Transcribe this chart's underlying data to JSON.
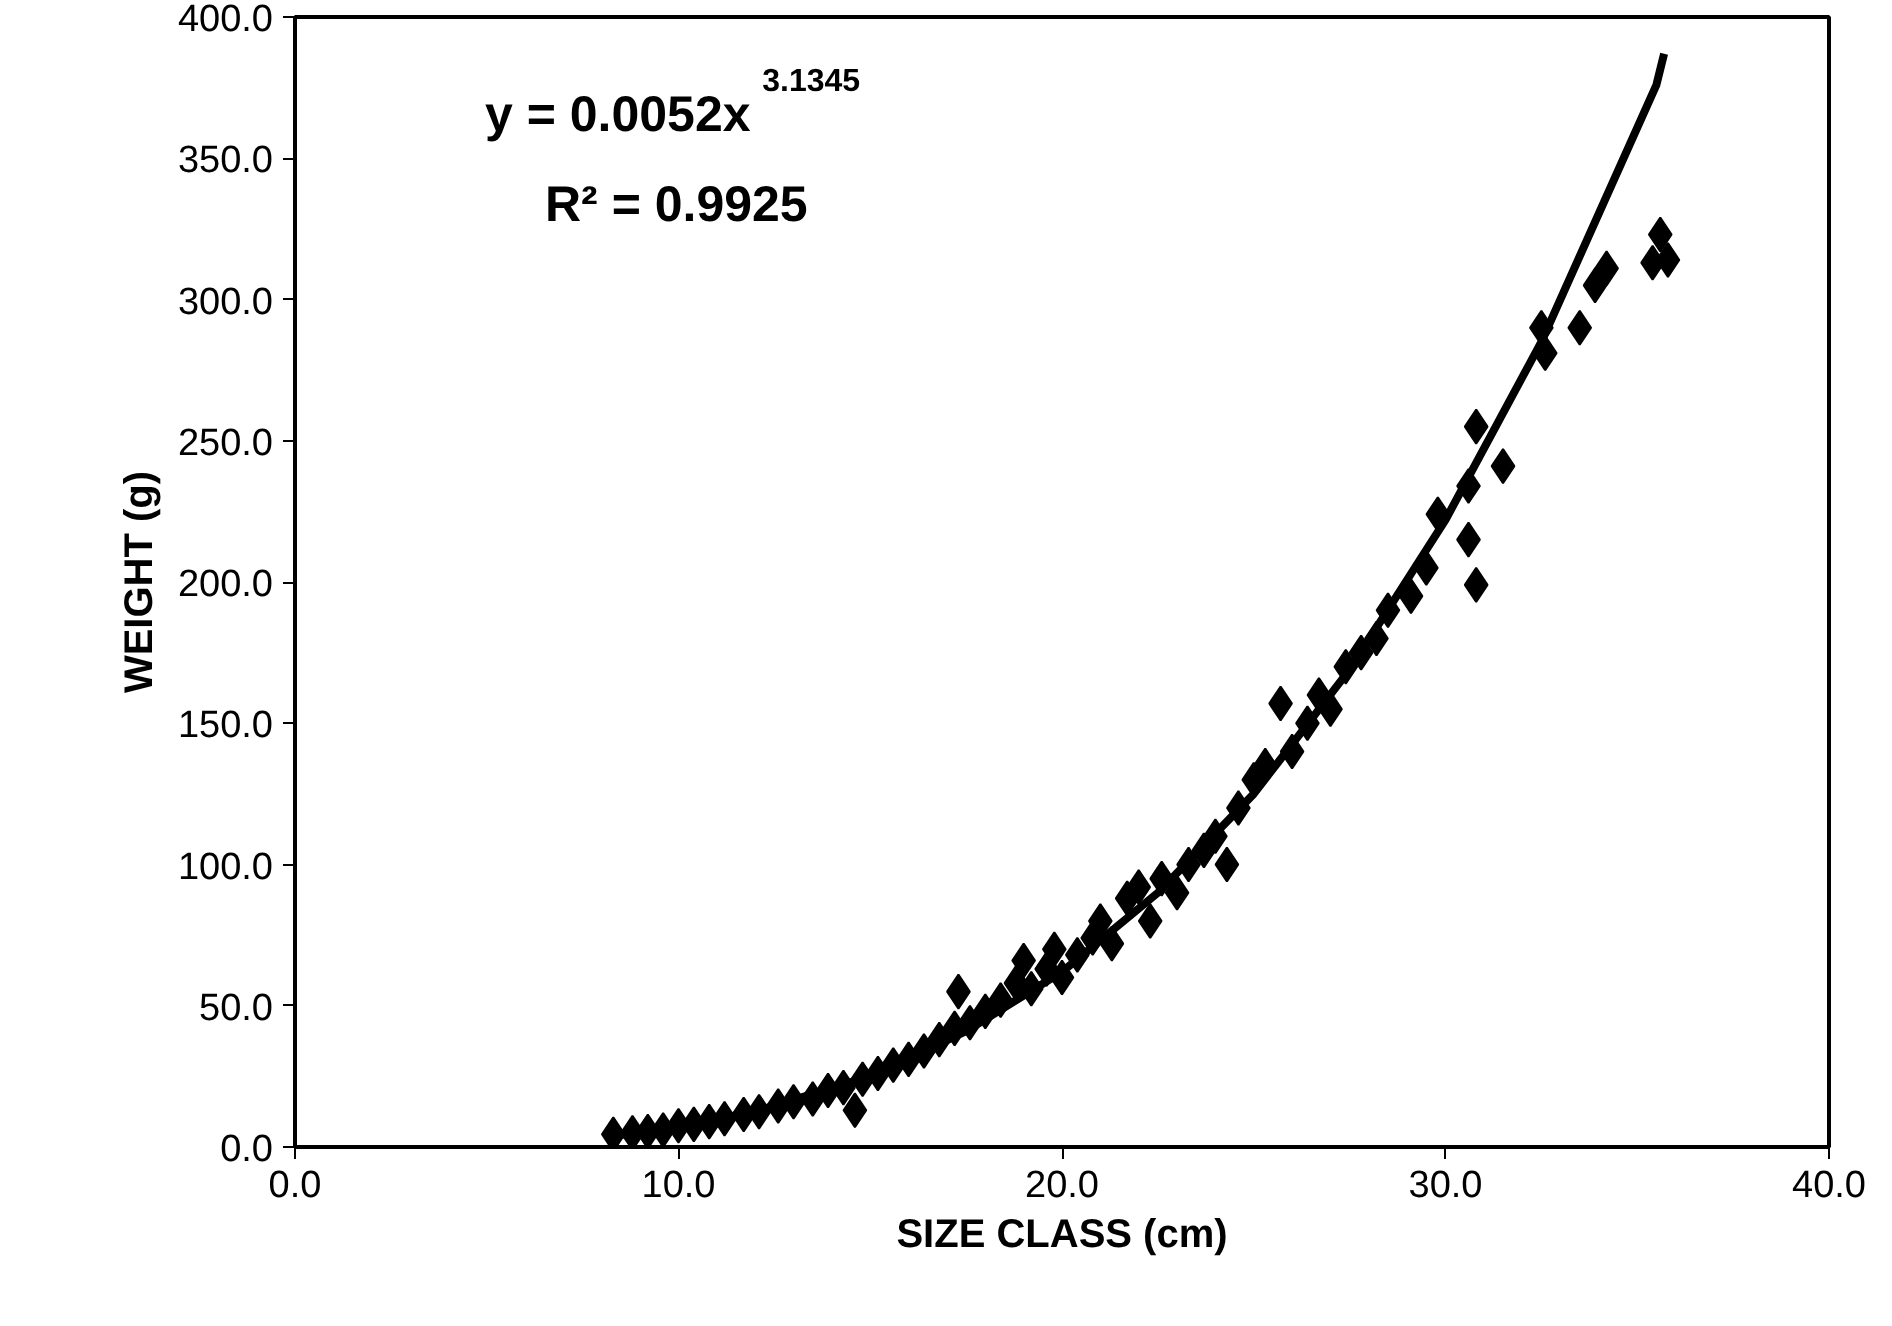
{
  "chart_data": {
    "type": "scatter",
    "xlabel": "SIZE CLASS (cm)",
    "ylabel": "WEIGHT (g)",
    "xlim": [
      0,
      40
    ],
    "ylim": [
      0,
      400
    ],
    "xticks": [
      {
        "value": 0,
        "label": "0.0"
      },
      {
        "value": 10,
        "label": "10.0"
      },
      {
        "value": 20,
        "label": "20.0"
      },
      {
        "value": 30,
        "label": "30.0"
      },
      {
        "value": 40,
        "label": "40.0"
      }
    ],
    "yticks": [
      {
        "value": 0,
        "label": "0.0"
      },
      {
        "value": 50,
        "label": "50.0"
      },
      {
        "value": 100,
        "label": "100.0"
      },
      {
        "value": 150,
        "label": "150.0"
      },
      {
        "value": 200,
        "label": "200.0"
      },
      {
        "value": 250,
        "label": "250.0"
      },
      {
        "value": 300,
        "label": "300.0"
      },
      {
        "value": 350,
        "label": "350.0"
      },
      {
        "value": 400,
        "label": "400.0"
      }
    ],
    "grid": false,
    "annotations": [
      "y = 0.0052x$^{3.1345}$",
      "R² = 0.9925"
    ],
    "series": [
      {
        "color": "#000000",
        "marker": "diamond",
        "x": [
          8.3,
          8.8,
          9.2,
          9.6,
          10.0,
          10.4,
          10.8,
          11.2,
          11.7,
          12.1,
          12.6,
          13.0,
          13.5,
          13.9,
          14.3,
          14.6,
          14.8,
          15.2,
          15.6,
          16.0,
          16.4,
          16.8,
          17.2,
          17.3,
          17.6,
          18.0,
          18.4,
          18.8,
          19.0,
          19.2,
          19.6,
          19.8,
          20.0,
          20.4,
          20.8,
          21.0,
          21.3,
          21.7,
          22.0,
          22.3,
          22.6,
          23.0,
          23.3,
          23.7,
          24.0,
          24.3,
          24.6,
          25.0,
          25.3,
          25.7,
          26.0,
          26.4,
          26.7,
          27.0,
          27.4,
          27.8,
          28.2,
          28.5,
          29.1,
          29.5,
          29.8,
          30.6,
          30.6,
          30.8,
          30.8,
          31.5,
          32.5,
          32.6,
          33.5,
          33.9,
          34.2,
          35.4,
          35.6,
          35.8
        ],
        "values": [
          4.5,
          5,
          5.5,
          6,
          7.5,
          8,
          9,
          10,
          11.5,
          12.5,
          14.5,
          16,
          17,
          20,
          21,
          13,
          24,
          26,
          29,
          31,
          34,
          38,
          42,
          55,
          44,
          48,
          52,
          58,
          66,
          56,
          63,
          70,
          60,
          68,
          74,
          80,
          72,
          88,
          92,
          80,
          95,
          90,
          100,
          105,
          110,
          100,
          120,
          130,
          135,
          157,
          140,
          150,
          160,
          155,
          170,
          175,
          180,
          190,
          195,
          205,
          224,
          234,
          215,
          199,
          255,
          241,
          290,
          281,
          290,
          305,
          311,
          313,
          323,
          314
        ]
      },
      {
        "type": "line",
        "color": "#000000",
        "marker": "none",
        "x": [
          8.3,
          10,
          12,
          15,
          17.5,
          20,
          22.5,
          25,
          27.5,
          30,
          32.5,
          35.5,
          35.7
        ],
        "values": [
          4,
          7,
          12.6,
          25,
          41,
          62,
          90,
          125,
          169,
          222,
          285,
          376,
          387
        ]
      }
    ]
  }
}
